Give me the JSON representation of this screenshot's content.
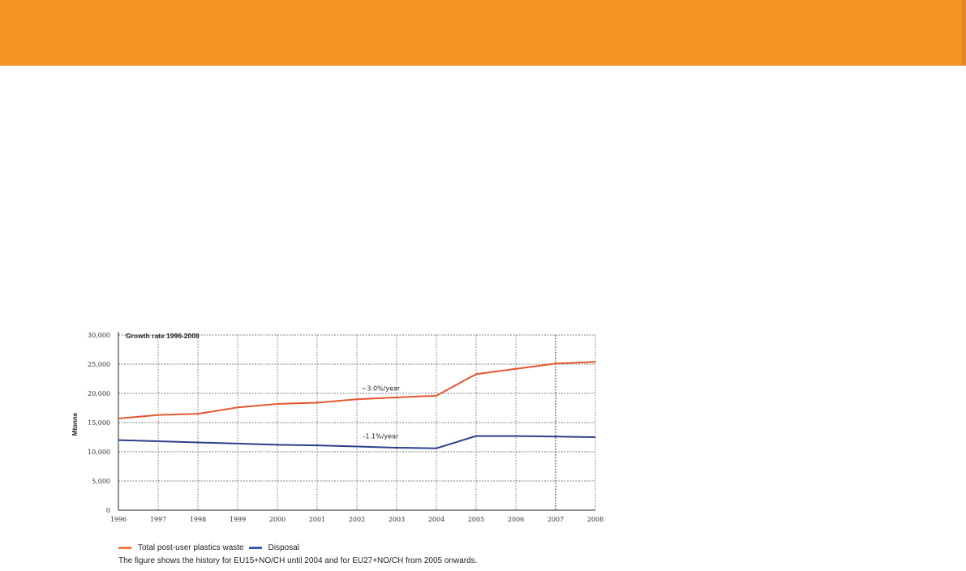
{
  "chart_data": {
    "type": "line",
    "title": "Growth rate 1996-2008",
    "ylabel": "Mtonne",
    "xlabel": "",
    "x": [
      1996,
      1997,
      1998,
      1999,
      2000,
      2001,
      2002,
      2003,
      2004,
      2005,
      2006,
      2007,
      2008
    ],
    "ylim": [
      0,
      30000
    ],
    "yticks": [
      0,
      5000,
      10000,
      15000,
      20000,
      25000,
      30000
    ],
    "ytick_labels": [
      "0",
      "5,000",
      "10,000",
      "15,000",
      "20,000",
      "25,000",
      "30,000"
    ],
    "xtick_labels": [
      "1996",
      "1997",
      "1998",
      "1999",
      "2000",
      "2001",
      "2002",
      "2003",
      "2004",
      "2005",
      "2006",
      "2007",
      "2008"
    ],
    "grid": true,
    "series": [
      {
        "name": "Total post-user plastics waste",
        "color": "#e4572e",
        "values": [
          15700,
          16300,
          16500,
          17600,
          18200,
          18400,
          19000,
          19300,
          19600,
          23300,
          24200,
          25100,
          25400
        ]
      },
      {
        "name": "Disposal",
        "color": "#2b3f8c",
        "values": [
          12000,
          11800,
          11600,
          11400,
          11200,
          11100,
          10900,
          10700,
          10600,
          12700,
          12700,
          12600,
          12500
        ]
      }
    ],
    "annotations": [
      {
        "text": "~3.0%/year",
        "x": 2002.6,
        "y": 20500
      },
      {
        "text": "-1.1%/year",
        "x": 2002.6,
        "y": 12300
      }
    ],
    "legend_position": "bottom-left",
    "caption": "The figure shows the history for EU15+NO/CH until 2004 and for EU27+NO/CH from 2005 onwards."
  }
}
